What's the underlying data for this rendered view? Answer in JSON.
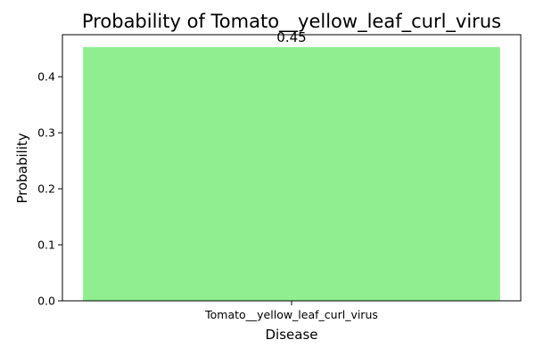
{
  "chart_data": {
    "type": "bar",
    "title": "Probability of Tomato__yellow_leaf_curl_virus",
    "xlabel": "Disease",
    "ylabel": "Probability",
    "categories": [
      "Tomato__yellow_leaf_curl_virus"
    ],
    "values": [
      0.453
    ],
    "data_labels": [
      "0.45"
    ],
    "ylim": [
      0,
      0.475
    ],
    "yticks": [
      0.0,
      0.1,
      0.2,
      0.3,
      0.4
    ],
    "ytick_labels": [
      "0.0",
      "0.1",
      "0.2",
      "0.3",
      "0.4"
    ],
    "bar_color": "#90ee90",
    "grid": false,
    "legend": "none"
  }
}
